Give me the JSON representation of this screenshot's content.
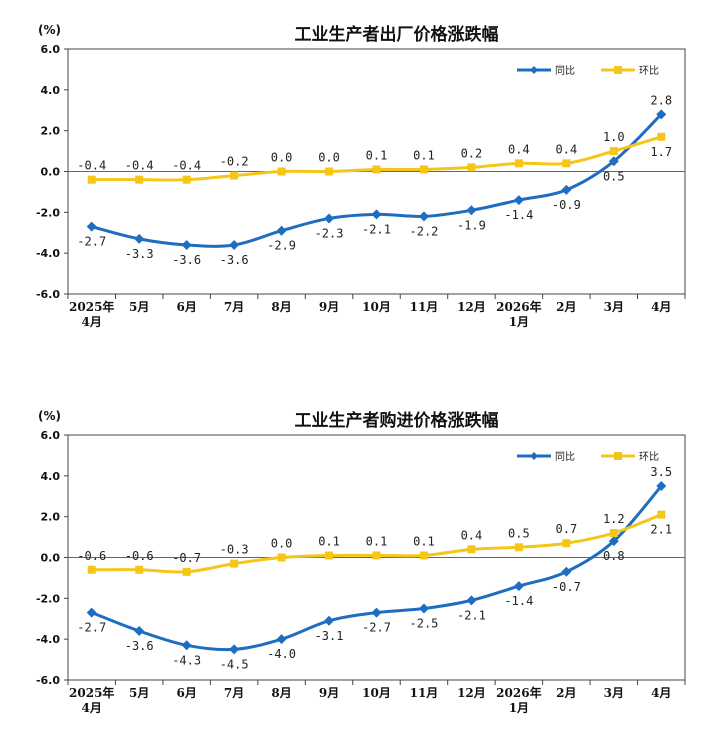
{
  "colors": {
    "yoy": "#1f6dc0",
    "mom": "#f5c518",
    "axis": "#444444",
    "zero": "#666666"
  },
  "chart_data": [
    {
      "type": "line",
      "title": "工业生产者出厂价格涨跌幅",
      "unit": "(%)",
      "ylim": [
        -6,
        6
      ],
      "yticks": [
        "6.0",
        "4.0",
        "2.0",
        "0.0",
        "-2.0",
        "-4.0",
        "-6.0"
      ],
      "categories": [
        [
          "2025年",
          "4月"
        ],
        [
          "5月"
        ],
        [
          "6月"
        ],
        [
          "7月"
        ],
        [
          "8月"
        ],
        [
          "9月"
        ],
        [
          "10月"
        ],
        [
          "11月"
        ],
        [
          "12月"
        ],
        [
          "2026年",
          "1月"
        ],
        [
          "2月"
        ],
        [
          "3月"
        ],
        [
          "4月"
        ]
      ],
      "legend_position": "top-right",
      "series": [
        {
          "name": "同比",
          "key": "yoy",
          "marker": "diamond",
          "values": [
            -2.7,
            -3.3,
            -3.6,
            -3.6,
            -2.9,
            -2.3,
            -2.1,
            -2.2,
            -1.9,
            -1.4,
            -0.9,
            0.5,
            2.8
          ],
          "labels": [
            "-2.7",
            "-3.3",
            "-3.6",
            "-3.6",
            "-2.9",
            "-2.3",
            "-2.1",
            "-2.2",
            "-1.9",
            "-1.4",
            "-0.9",
            "0.5",
            "2.8"
          ],
          "label_pos": [
            "below",
            "below",
            "below",
            "below",
            "below",
            "below",
            "below",
            "below",
            "below",
            "below",
            "below",
            "below",
            "above"
          ]
        },
        {
          "name": "环比",
          "key": "mom",
          "marker": "square",
          "values": [
            -0.4,
            -0.4,
            -0.4,
            -0.2,
            0.0,
            0.0,
            0.1,
            0.1,
            0.2,
            0.4,
            0.4,
            1.0,
            1.7
          ],
          "labels": [
            "-0.4",
            "-0.4",
            "-0.4",
            "-0.2",
            "0.0",
            "0.0",
            "0.1",
            "0.1",
            "0.2",
            "0.4",
            "0.4",
            "1.0",
            "1.7"
          ],
          "label_pos": [
            "above",
            "above",
            "above",
            "above",
            "above",
            "above",
            "above",
            "above",
            "above",
            "above",
            "above",
            "above",
            "below"
          ]
        }
      ]
    },
    {
      "type": "line",
      "title": "工业生产者购进价格涨跌幅",
      "unit": "(%)",
      "ylim": [
        -6,
        6
      ],
      "yticks": [
        "6.0",
        "4.0",
        "2.0",
        "0.0",
        "-2.0",
        "-4.0",
        "-6.0"
      ],
      "categories": [
        [
          "2025年",
          "4月"
        ],
        [
          "5月"
        ],
        [
          "6月"
        ],
        [
          "7月"
        ],
        [
          "8月"
        ],
        [
          "9月"
        ],
        [
          "10月"
        ],
        [
          "11月"
        ],
        [
          "12月"
        ],
        [
          "2026年",
          "1月"
        ],
        [
          "2月"
        ],
        [
          "3月"
        ],
        [
          "4月"
        ]
      ],
      "legend_position": "top-right",
      "series": [
        {
          "name": "同比",
          "key": "yoy",
          "marker": "diamond",
          "values": [
            -2.7,
            -3.6,
            -4.3,
            -4.5,
            -4.0,
            -3.1,
            -2.7,
            -2.5,
            -2.1,
            -1.4,
            -0.7,
            0.8,
            3.5
          ],
          "labels": [
            "-2.7",
            "-3.6",
            "-4.3",
            "-4.5",
            "-4.0",
            "-3.1",
            "-2.7",
            "-2.5",
            "-2.1",
            "-1.4",
            "-0.7",
            "0.8",
            "3.5"
          ],
          "label_pos": [
            "below",
            "below",
            "below",
            "below",
            "below",
            "below",
            "below",
            "below",
            "below",
            "below",
            "below",
            "below",
            "above"
          ]
        },
        {
          "name": "环比",
          "key": "mom",
          "marker": "square",
          "values": [
            -0.6,
            -0.6,
            -0.7,
            -0.3,
            0.0,
            0.1,
            0.1,
            0.1,
            0.4,
            0.5,
            0.7,
            1.2,
            2.1
          ],
          "labels": [
            "-0.6",
            "-0.6",
            "-0.7",
            "-0.3",
            "0.0",
            "0.1",
            "0.1",
            "0.1",
            "0.4",
            "0.5",
            "0.7",
            "1.2",
            "2.1"
          ],
          "label_pos": [
            "above",
            "above",
            "above",
            "above",
            "above",
            "above",
            "above",
            "above",
            "above",
            "above",
            "above",
            "above",
            "below"
          ]
        }
      ]
    }
  ]
}
